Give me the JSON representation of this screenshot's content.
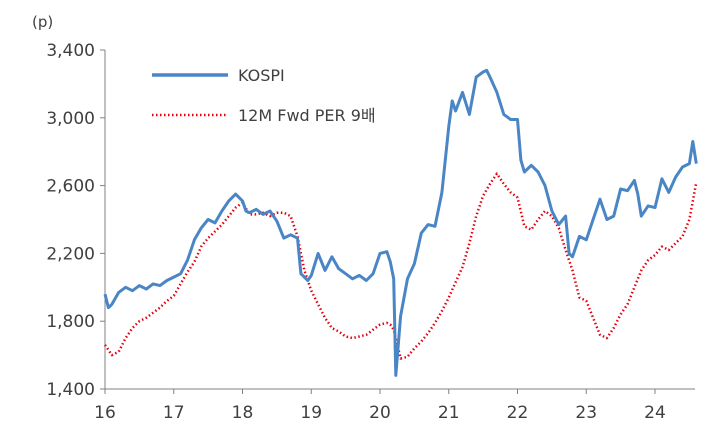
{
  "chart_data": {
    "type": "line",
    "title": "",
    "xlabel": "",
    "ylabel": "",
    "unit_label": "(p)",
    "ylim": [
      1400,
      3400
    ],
    "xlim": [
      16,
      24.6
    ],
    "y_ticks": [
      {
        "value": 1400,
        "label": "1,400"
      },
      {
        "value": 1800,
        "label": "1,800"
      },
      {
        "value": 2200,
        "label": "2,200"
      },
      {
        "value": 2600,
        "label": "2,600"
      },
      {
        "value": 3000,
        "label": "3,000"
      },
      {
        "value": 3400,
        "label": "3,400"
      }
    ],
    "x_ticks": [
      {
        "value": 16,
        "label": "16"
      },
      {
        "value": 17,
        "label": "17"
      },
      {
        "value": 18,
        "label": "18"
      },
      {
        "value": 19,
        "label": "19"
      },
      {
        "value": 20,
        "label": "20"
      },
      {
        "value": 21,
        "label": "21"
      },
      {
        "value": 22,
        "label": "22"
      },
      {
        "value": 23,
        "label": "23"
      },
      {
        "value": 24,
        "label": "24"
      }
    ],
    "grid": false,
    "legend_position": "top-left",
    "series": [
      {
        "name": "KOSPI",
        "color": "#4a86c5",
        "style": "solid",
        "x": [
          16.0,
          16.05,
          16.1,
          16.2,
          16.3,
          16.4,
          16.5,
          16.6,
          16.7,
          16.8,
          16.9,
          17.0,
          17.1,
          17.2,
          17.3,
          17.4,
          17.5,
          17.6,
          17.7,
          17.8,
          17.9,
          18.0,
          18.05,
          18.1,
          18.2,
          18.3,
          18.4,
          18.5,
          18.6,
          18.7,
          18.8,
          18.85,
          18.95,
          19.0,
          19.1,
          19.2,
          19.3,
          19.4,
          19.5,
          19.6,
          19.7,
          19.8,
          19.9,
          20.0,
          20.1,
          20.15,
          20.2,
          20.23,
          20.3,
          20.4,
          20.5,
          20.6,
          20.7,
          20.8,
          20.9,
          21.0,
          21.05,
          21.1,
          21.2,
          21.3,
          21.4,
          21.5,
          21.55,
          21.6,
          21.7,
          21.8,
          21.9,
          22.0,
          22.05,
          22.1,
          22.2,
          22.3,
          22.4,
          22.5,
          22.6,
          22.7,
          22.75,
          22.8,
          22.9,
          23.0,
          23.1,
          23.2,
          23.3,
          23.4,
          23.5,
          23.6,
          23.7,
          23.75,
          23.8,
          23.9,
          24.0,
          24.1,
          24.2,
          24.3,
          24.4,
          24.5,
          24.55,
          24.6
        ],
        "y": [
          1960,
          1880,
          1900,
          1970,
          2000,
          1980,
          2010,
          1990,
          2020,
          2010,
          2040,
          2060,
          2080,
          2160,
          2280,
          2350,
          2400,
          2380,
          2450,
          2510,
          2550,
          2510,
          2450,
          2440,
          2460,
          2430,
          2450,
          2390,
          2290,
          2310,
          2290,
          2080,
          2040,
          2070,
          2200,
          2100,
          2180,
          2110,
          2080,
          2050,
          2070,
          2040,
          2080,
          2200,
          2210,
          2150,
          2050,
          1480,
          1830,
          2050,
          2140,
          2320,
          2370,
          2360,
          2560,
          2950,
          3100,
          3040,
          3150,
          3020,
          3240,
          3270,
          3280,
          3240,
          3150,
          3020,
          2990,
          2990,
          2750,
          2680,
          2720,
          2680,
          2600,
          2450,
          2370,
          2420,
          2200,
          2180,
          2300,
          2280,
          2400,
          2520,
          2400,
          2420,
          2580,
          2570,
          2630,
          2550,
          2420,
          2480,
          2470,
          2640,
          2560,
          2650,
          2710,
          2730,
          2860,
          2730
        ]
      },
      {
        "name": "12M Fwd PER 9배",
        "color": "#e3000f",
        "style": "dotted",
        "x": [
          16.0,
          16.1,
          16.2,
          16.3,
          16.4,
          16.5,
          16.6,
          16.7,
          16.8,
          16.9,
          17.0,
          17.1,
          17.2,
          17.3,
          17.4,
          17.5,
          17.6,
          17.7,
          17.8,
          17.9,
          18.0,
          18.1,
          18.2,
          18.3,
          18.4,
          18.5,
          18.6,
          18.7,
          18.8,
          18.9,
          19.0,
          19.1,
          19.2,
          19.3,
          19.4,
          19.5,
          19.6,
          19.7,
          19.8,
          19.9,
          20.0,
          20.1,
          20.15,
          20.2,
          20.3,
          20.4,
          20.5,
          20.6,
          20.7,
          20.8,
          20.9,
          21.0,
          21.1,
          21.2,
          21.3,
          21.4,
          21.5,
          21.6,
          21.7,
          21.8,
          21.9,
          22.0,
          22.1,
          22.2,
          22.3,
          22.4,
          22.5,
          22.6,
          22.7,
          22.8,
          22.9,
          23.0,
          23.1,
          23.2,
          23.3,
          23.4,
          23.5,
          23.6,
          23.7,
          23.8,
          23.9,
          24.0,
          24.1,
          24.2,
          24.3,
          24.4,
          24.5,
          24.6
        ],
        "y": [
          1660,
          1600,
          1620,
          1700,
          1760,
          1800,
          1820,
          1850,
          1880,
          1920,
          1950,
          2020,
          2090,
          2150,
          2240,
          2290,
          2330,
          2370,
          2420,
          2470,
          2500,
          2430,
          2430,
          2440,
          2420,
          2440,
          2440,
          2420,
          2300,
          2100,
          1980,
          1900,
          1820,
          1760,
          1740,
          1710,
          1700,
          1710,
          1720,
          1750,
          1780,
          1790,
          1780,
          1750,
          1580,
          1590,
          1640,
          1680,
          1730,
          1790,
          1860,
          1940,
          2030,
          2120,
          2260,
          2420,
          2540,
          2610,
          2670,
          2610,
          2560,
          2530,
          2360,
          2340,
          2400,
          2450,
          2420,
          2350,
          2220,
          2100,
          1940,
          1920,
          1820,
          1720,
          1700,
          1760,
          1840,
          1900,
          2000,
          2100,
          2160,
          2190,
          2240,
          2220,
          2260,
          2300,
          2400,
          2620
        ]
      }
    ]
  }
}
